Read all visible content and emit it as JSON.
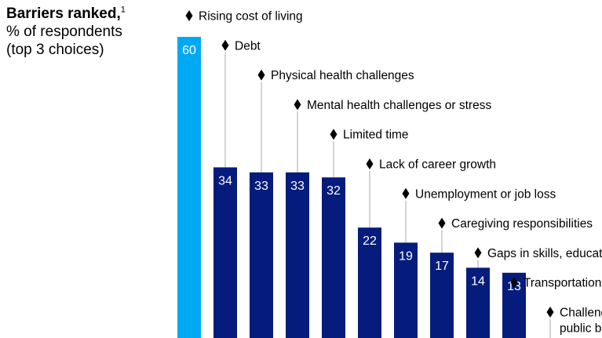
{
  "heading": {
    "title": "Barriers ranked,",
    "footnote": "1",
    "line2": "% of respondents",
    "line3": "(top 3 choices)"
  },
  "chart_data": {
    "type": "bar",
    "ylabel": "% of respondents",
    "ylim": [
      0,
      60
    ],
    "categories": [
      "Rising cost of living",
      "Debt",
      "Physical health challenges",
      "Mental health challenges or stress",
      "Limited time",
      "Lack of career growth",
      "Unemployment or job loss",
      "Caregiving responsibilities",
      "Gaps in skills, educat",
      "Transportation",
      "Challeng public be"
    ],
    "values": [
      60,
      34,
      33,
      33,
      32,
      22,
      19,
      17,
      14,
      13,
      null
    ],
    "colors": {
      "highlight": "#00A9F4",
      "default": "#051C7C",
      "leader": "#AAAAAA",
      "marker": "#000000"
    },
    "highlight_index": 0
  }
}
